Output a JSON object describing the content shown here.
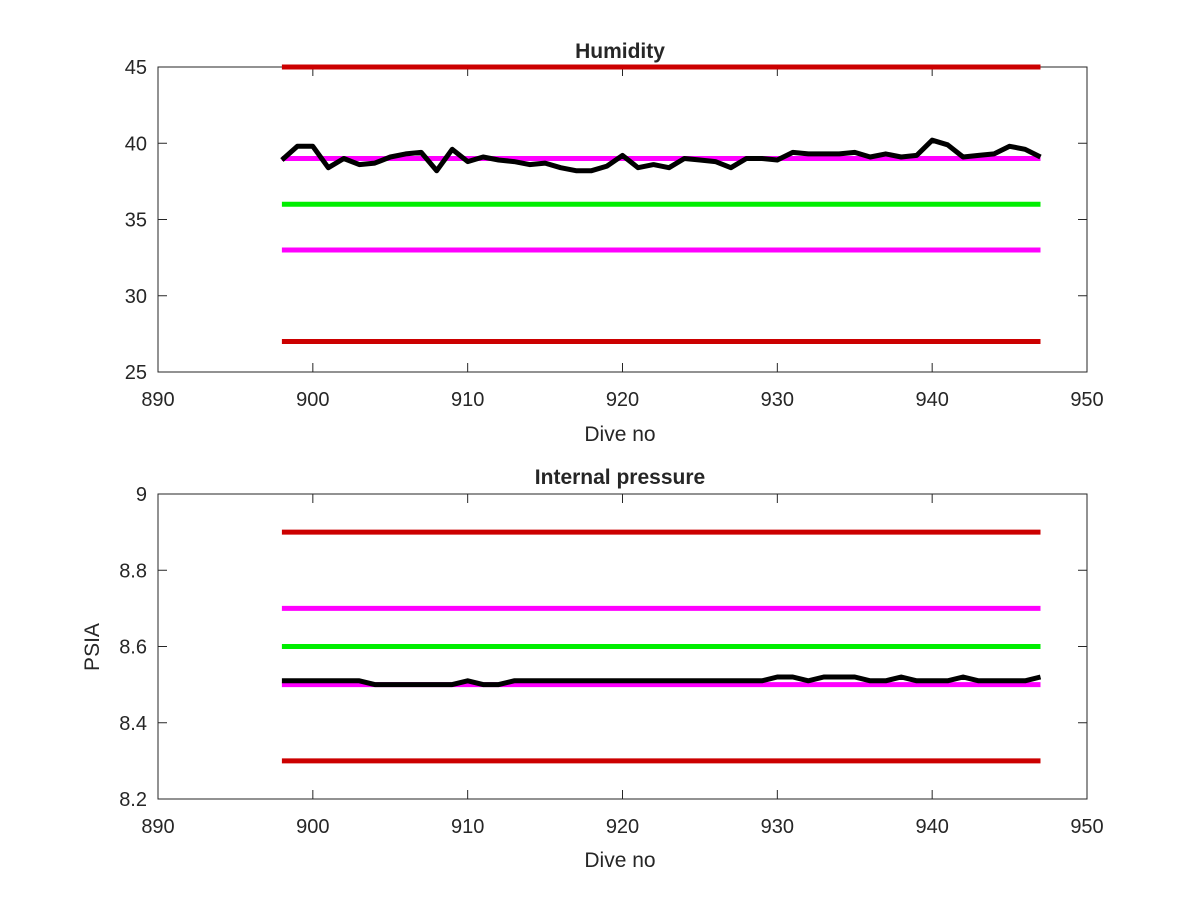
{
  "chart_data": [
    {
      "type": "line",
      "title": "Humidity",
      "xlabel": "Dive no",
      "ylabel": "",
      "xlim": [
        890,
        950
      ],
      "ylim": [
        25,
        45
      ],
      "xticks": [
        890,
        900,
        910,
        920,
        930,
        940,
        950
      ],
      "yticks": [
        25,
        30,
        35,
        40,
        45
      ],
      "grid": false,
      "series": [
        {
          "color": "#cc0000",
          "x": [
            898,
            947
          ],
          "y": [
            45,
            45
          ]
        },
        {
          "color": "#ff00ff",
          "x": [
            898,
            947
          ],
          "y": [
            39,
            39
          ]
        },
        {
          "color": "#00ee00",
          "x": [
            898,
            947
          ],
          "y": [
            36,
            36
          ]
        },
        {
          "color": "#ff00ff",
          "x": [
            898,
            947
          ],
          "y": [
            33,
            33
          ]
        },
        {
          "color": "#cc0000",
          "x": [
            898,
            947
          ],
          "y": [
            27,
            27
          ]
        },
        {
          "color": "#000000",
          "x": [
            898,
            899,
            900,
            901,
            902,
            903,
            904,
            905,
            906,
            907,
            908,
            909,
            910,
            911,
            912,
            913,
            914,
            915,
            916,
            917,
            918,
            919,
            920,
            921,
            922,
            923,
            924,
            925,
            926,
            927,
            928,
            929,
            930,
            931,
            932,
            933,
            934,
            935,
            936,
            937,
            938,
            939,
            940,
            941,
            942,
            943,
            944,
            945,
            946,
            947
          ],
          "y": [
            38.9,
            39.8,
            39.8,
            38.4,
            39.0,
            38.6,
            38.7,
            39.1,
            39.3,
            39.4,
            38.2,
            39.6,
            38.8,
            39.1,
            38.9,
            38.8,
            38.6,
            38.7,
            38.4,
            38.2,
            38.2,
            38.5,
            39.2,
            38.4,
            38.6,
            38.4,
            39.0,
            38.9,
            38.8,
            38.4,
            39.0,
            39.0,
            38.9,
            39.4,
            39.3,
            39.3,
            39.3,
            39.4,
            39.1,
            39.3,
            39.1,
            39.2,
            40.2,
            39.9,
            39.1,
            39.2,
            39.3,
            39.8,
            39.6,
            39.1
          ]
        }
      ]
    },
    {
      "type": "line",
      "title": "Internal pressure",
      "xlabel": "Dive no",
      "ylabel": "PSIA",
      "xlim": [
        890,
        950
      ],
      "ylim": [
        8.2,
        9
      ],
      "xticks": [
        890,
        900,
        910,
        920,
        930,
        940,
        950
      ],
      "yticks": [
        8.2,
        8.4,
        8.6,
        8.8,
        9
      ],
      "grid": false,
      "series": [
        {
          "color": "#cc0000",
          "x": [
            898,
            947
          ],
          "y": [
            8.9,
            8.9
          ]
        },
        {
          "color": "#ff00ff",
          "x": [
            898,
            947
          ],
          "y": [
            8.7,
            8.7
          ]
        },
        {
          "color": "#00ee00",
          "x": [
            898,
            947
          ],
          "y": [
            8.6,
            8.6
          ]
        },
        {
          "color": "#ff00ff",
          "x": [
            898,
            947
          ],
          "y": [
            8.5,
            8.5
          ]
        },
        {
          "color": "#cc0000",
          "x": [
            898,
            947
          ],
          "y": [
            8.3,
            8.3
          ]
        },
        {
          "color": "#000000",
          "x": [
            898,
            899,
            900,
            901,
            902,
            903,
            904,
            905,
            906,
            907,
            908,
            909,
            910,
            911,
            912,
            913,
            914,
            915,
            916,
            917,
            918,
            919,
            920,
            921,
            922,
            923,
            924,
            925,
            926,
            927,
            928,
            929,
            930,
            931,
            932,
            933,
            934,
            935,
            936,
            937,
            938,
            939,
            940,
            941,
            942,
            943,
            944,
            945,
            946,
            947
          ],
          "y": [
            8.51,
            8.51,
            8.51,
            8.51,
            8.51,
            8.51,
            8.5,
            8.5,
            8.5,
            8.5,
            8.5,
            8.5,
            8.51,
            8.5,
            8.5,
            8.51,
            8.51,
            8.51,
            8.51,
            8.51,
            8.51,
            8.51,
            8.51,
            8.51,
            8.51,
            8.51,
            8.51,
            8.51,
            8.51,
            8.51,
            8.51,
            8.51,
            8.52,
            8.52,
            8.51,
            8.52,
            8.52,
            8.52,
            8.51,
            8.51,
            8.52,
            8.51,
            8.51,
            8.51,
            8.52,
            8.51,
            8.51,
            8.51,
            8.51,
            8.52
          ]
        }
      ]
    }
  ]
}
